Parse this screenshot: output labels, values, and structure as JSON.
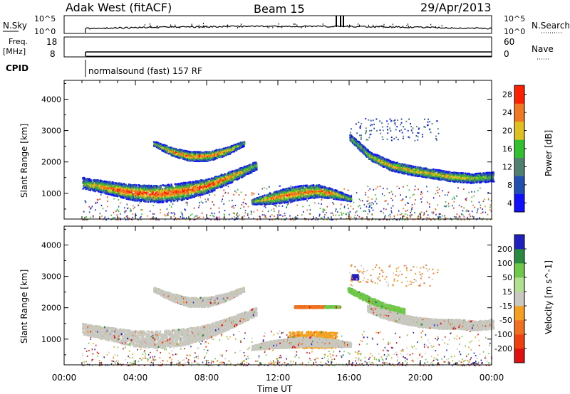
{
  "header": {
    "station": "Adak West (fitACF)",
    "beam": "Beam 15",
    "date": "29/Apr/2013"
  },
  "strip": {
    "nsky_label": "N.Sky",
    "nsky_top": "10^5",
    "nsky_bottom": "10^0",
    "nsearch_label": "N.Search",
    "nsearch_top": "10^5",
    "nsearch_bottom": "10^0",
    "freq_label": "Freq.",
    "freq_unit": "[MHz]",
    "freq_top": "18",
    "freq_bottom": "8",
    "nave_label": "Nave",
    "nave_top": "60",
    "nave_bottom": "0",
    "cpid_label": "CPID",
    "cpid_value": "normalsound (fast) 157 RF"
  },
  "chart_data": [
    {
      "type": "heatmap",
      "name": "power",
      "xlabel": "Time UT",
      "ylabel": "Slant Range [km]",
      "xlim_hours": [
        0,
        24
      ],
      "ylim": [
        180,
        4600
      ],
      "x_tick_labels": [
        "00:00",
        "04:00",
        "08:00",
        "12:00",
        "16:00",
        "20:00",
        "00:00"
      ],
      "y_tick_values": [
        1000,
        2000,
        3000,
        4000
      ],
      "y_tick_labels": [
        "1000",
        "2000",
        "3000",
        "4000"
      ],
      "colorbar_label": "Power [dB]",
      "colorbar_ticks": [
        "4",
        "8",
        "12",
        "16",
        "20",
        "24",
        "28"
      ],
      "colorbar_colors": [
        "#1010ff",
        "#2050b0",
        "#508070",
        "#30c030",
        "#e0c020",
        "#f07820",
        "#ff2000"
      ],
      "bands": [
        {
          "t0": 1.0,
          "t1": 10.7,
          "r_center": [
            1350,
            1200,
            1050,
            1000,
            1080,
            1250,
            1550,
            1900
          ],
          "thickness": [
            350,
            400,
            500,
            550,
            550,
            450,
            350,
            250
          ],
          "peak_db": 28
        },
        {
          "t0": 5.0,
          "t1": 10.0,
          "r_center": [
            2600,
            2350,
            2200,
            2200,
            2350,
            2600
          ],
          "thickness": [
            150,
            250,
            300,
            300,
            250,
            150
          ],
          "peak_db": 26
        },
        {
          "t0": 10.5,
          "t1": 16.0,
          "r_center": [
            750,
            850,
            950,
            1050,
            1100,
            1000,
            850
          ],
          "thickness": [
            150,
            350,
            450,
            450,
            400,
            300,
            150
          ],
          "peak_db": 26
        },
        {
          "t0": 16.0,
          "t1": 24.0,
          "r_center": [
            2800,
            2200,
            1900,
            1750,
            1650,
            1550,
            1500,
            1550
          ],
          "thickness": [
            200,
            250,
            300,
            300,
            300,
            300,
            300,
            300
          ],
          "peak_db": 22
        }
      ]
    },
    {
      "type": "heatmap",
      "name": "velocity",
      "xlabel": "Time UT",
      "ylabel": "Slant Range [km]",
      "xlim_hours": [
        0,
        24
      ],
      "ylim": [
        180,
        4600
      ],
      "x_tick_labels": [
        "00:00",
        "04:00",
        "08:00",
        "12:00",
        "16:00",
        "20:00",
        "00:00"
      ],
      "y_tick_values": [
        1000,
        2000,
        3000,
        4000
      ],
      "y_tick_labels": [
        "1000",
        "2000",
        "3000",
        "4000"
      ],
      "colorbar_label": "Velocity [m s^-1]",
      "colorbar_ticks": [
        "200",
        "100",
        "50",
        "15",
        "-15",
        "-50",
        "-100",
        "-200"
      ],
      "colorbar_colors": [
        "#2020c0",
        "#2a8a40",
        "#6ec84a",
        "#b0e090",
        "#c8c8c0",
        "#f5a020",
        "#f07020",
        "#f04010",
        "#e01010"
      ],
      "features": [
        {
          "color": "#c8c8c0",
          "t0": 1.0,
          "t1": 10.7,
          "r_center": [
            1350,
            1200,
            1050,
            1000,
            1080,
            1250,
            1550,
            1900
          ],
          "thickness": [
            350,
            400,
            500,
            550,
            550,
            450,
            350,
            250
          ]
        },
        {
          "color": "#c8c8c0",
          "t0": 5.0,
          "t1": 10.0,
          "r_center": [
            2600,
            2350,
            2200,
            2200,
            2350,
            2600
          ],
          "thickness": [
            150,
            250,
            300,
            300,
            250,
            150
          ]
        },
        {
          "color": "#f5a020",
          "t0": 12.6,
          "t1": 15.2,
          "r_center": [
            1000,
            1000,
            1000
          ],
          "thickness": [
            500,
            550,
            500
          ]
        },
        {
          "color": "#c8c8c0",
          "t0": 10.5,
          "t1": 16.0,
          "r_center": [
            750,
            850,
            900,
            950,
            900,
            850
          ],
          "thickness": [
            150,
            250,
            300,
            300,
            250,
            150
          ]
        },
        {
          "color": "#6ec84a",
          "t0": 15.9,
          "t1": 19.0,
          "r_center": [
            2600,
            2300,
            2050,
            1900
          ],
          "thickness": [
            150,
            200,
            200,
            200
          ]
        },
        {
          "color": "#c8c8c0",
          "t0": 17.0,
          "t1": 24.0,
          "r_center": [
            2000,
            1800,
            1650,
            1550,
            1500,
            1500,
            1450,
            1500
          ],
          "thickness": [
            250,
            300,
            300,
            300,
            300,
            300,
            300,
            300
          ]
        },
        {
          "color": "#f07020",
          "t0": 12.9,
          "t1": 14.5,
          "r_center": [
            2050,
            2050
          ],
          "thickness": [
            70,
            70
          ]
        },
        {
          "color": "#6ec84a",
          "t0": 14.6,
          "t1": 15.4,
          "r_center": [
            2050,
            2050
          ],
          "thickness": [
            60,
            60
          ]
        },
        {
          "color": "#2020c0",
          "t0": 16.1,
          "t1": 16.4,
          "r_center": [
            3000,
            3000
          ],
          "thickness": [
            150,
            150
          ]
        }
      ]
    }
  ]
}
